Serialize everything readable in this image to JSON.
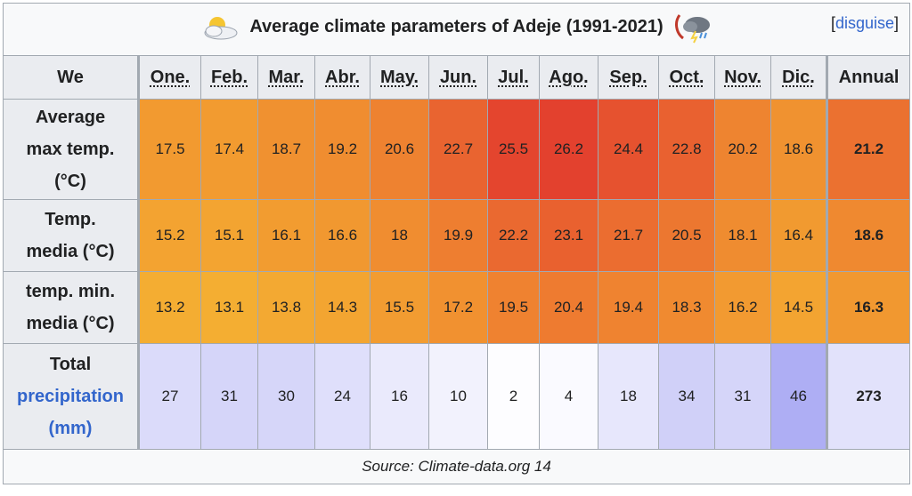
{
  "caption": {
    "title": "Average climate parameters of Adeje (1991-2021)",
    "hide_link": "disguise",
    "left_icon": "sun-cloud-icon",
    "right_icon": "storm-cloud-icon"
  },
  "header": {
    "corner": "We",
    "months": [
      "One.",
      "Feb.",
      "Mar.",
      "Abr.",
      "May.",
      "Jun.",
      "Jul.",
      "Ago.",
      "Sep.",
      "Oct.",
      "Nov.",
      "Dic."
    ],
    "annual": "Annual"
  },
  "rows": {
    "max": {
      "label_lines": [
        "Average",
        "max temp.",
        "(°C)"
      ],
      "values": [
        "17.5",
        "17.4",
        "18.7",
        "19.2",
        "20.6",
        "22.7",
        "25.5",
        "26.2",
        "24.4",
        "22.8",
        "20.2",
        "18.6"
      ],
      "annual": "21.2",
      "colors": [
        "#f29a30",
        "#f29b30",
        "#f09130",
        "#f08d30",
        "#ee8230",
        "#e96430",
        "#e4452e",
        "#e3412e",
        "#e6522f",
        "#e96130",
        "#ee8430",
        "#f09230"
      ],
      "annual_color": "#eb7130"
    },
    "med": {
      "label_lines": [
        "Temp.",
        "media (°C)"
      ],
      "values": [
        "15.2",
        "15.1",
        "16.1",
        "16.6",
        "18",
        "19.9",
        "22.2",
        "23.1",
        "21.7",
        "20.5",
        "18.1",
        "16.4"
      ],
      "annual": "18.6",
      "colors": [
        "#f3a331",
        "#f3a431",
        "#f29c30",
        "#f19830",
        "#f08d30",
        "#ee7e30",
        "#ea6930",
        "#e9612f",
        "#eb6d30",
        "#ec7730",
        "#ef8c30",
        "#f19a30"
      ],
      "annual_color": "#ef8930"
    },
    "min": {
      "label_lines": [
        "temp. min.",
        "media (°C)"
      ],
      "values": [
        "13.2",
        "13.1",
        "13.8",
        "14.3",
        "15.5",
        "17.2",
        "19.5",
        "20.4",
        "19.4",
        "18.3",
        "16.2",
        "14.5"
      ],
      "annual": "16.3",
      "colors": [
        "#f4ad32",
        "#f4ae32",
        "#f3a932",
        "#f3a531",
        "#f29c31",
        "#f19130",
        "#ef8230",
        "#ee7b30",
        "#ef8330",
        "#f08a30",
        "#f29a31",
        "#f3a431"
      ],
      "annual_color": "#f19830"
    },
    "pre": {
      "label_lines": [
        "Total",
        "precipitation",
        "(mm)"
      ],
      "values": [
        "27",
        "31",
        "30",
        "24",
        "16",
        "10",
        "2",
        "4",
        "18",
        "34",
        "31",
        "46"
      ],
      "annual": "273",
      "colors": [
        "#dbdbfa",
        "#d5d5f9",
        "#d6d6f9",
        "#dfdffb",
        "#eaeafc",
        "#f2f2fd",
        "#fdfdff",
        "#fafaff",
        "#e7e7fc",
        "#d0d0f8",
        "#d5d5f9",
        "#aeaef4"
      ],
      "annual_color": "#e2e2fb"
    }
  },
  "source": "Source: Climate-data.org 14"
}
